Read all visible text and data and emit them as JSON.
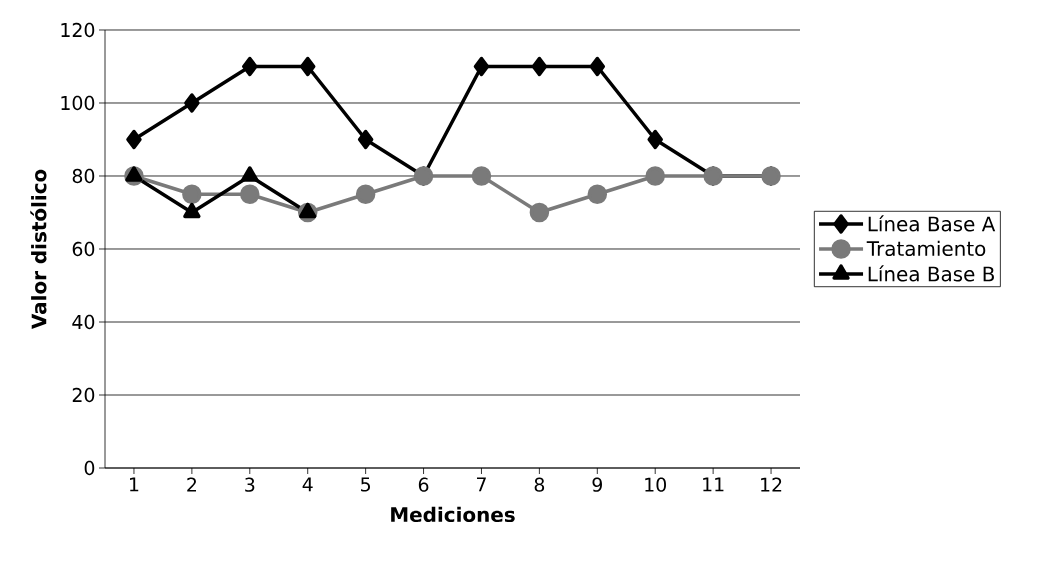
{
  "chart_data": {
    "type": "line",
    "xlabel": "Mediciones",
    "ylabel": "Valor distólico",
    "categories": [
      "1",
      "2",
      "3",
      "4",
      "5",
      "6",
      "7",
      "8",
      "9",
      "10",
      "11",
      "12"
    ],
    "series": [
      {
        "name": "Línea Base A",
        "color": "#000000",
        "marker": "diamond",
        "values": [
          90,
          100,
          110,
          110,
          90,
          80,
          110,
          110,
          110,
          90,
          80,
          80
        ]
      },
      {
        "name": "Tratamiento",
        "color": "#7a7a7a",
        "marker": "circle",
        "values": [
          80,
          75,
          75,
          70,
          75,
          80,
          80,
          70,
          75,
          80,
          80,
          80
        ]
      },
      {
        "name": "Línea Base B",
        "color": "#000000",
        "marker": "triangle",
        "values": [
          80,
          70,
          80,
          70,
          null,
          null,
          null,
          null,
          null,
          null,
          null,
          null
        ]
      }
    ],
    "ylim": [
      0,
      120
    ],
    "yticks": [
      0,
      20,
      40,
      60,
      80,
      100,
      120
    ],
    "grid": "y",
    "legend": "right",
    "line_style": "solid"
  }
}
